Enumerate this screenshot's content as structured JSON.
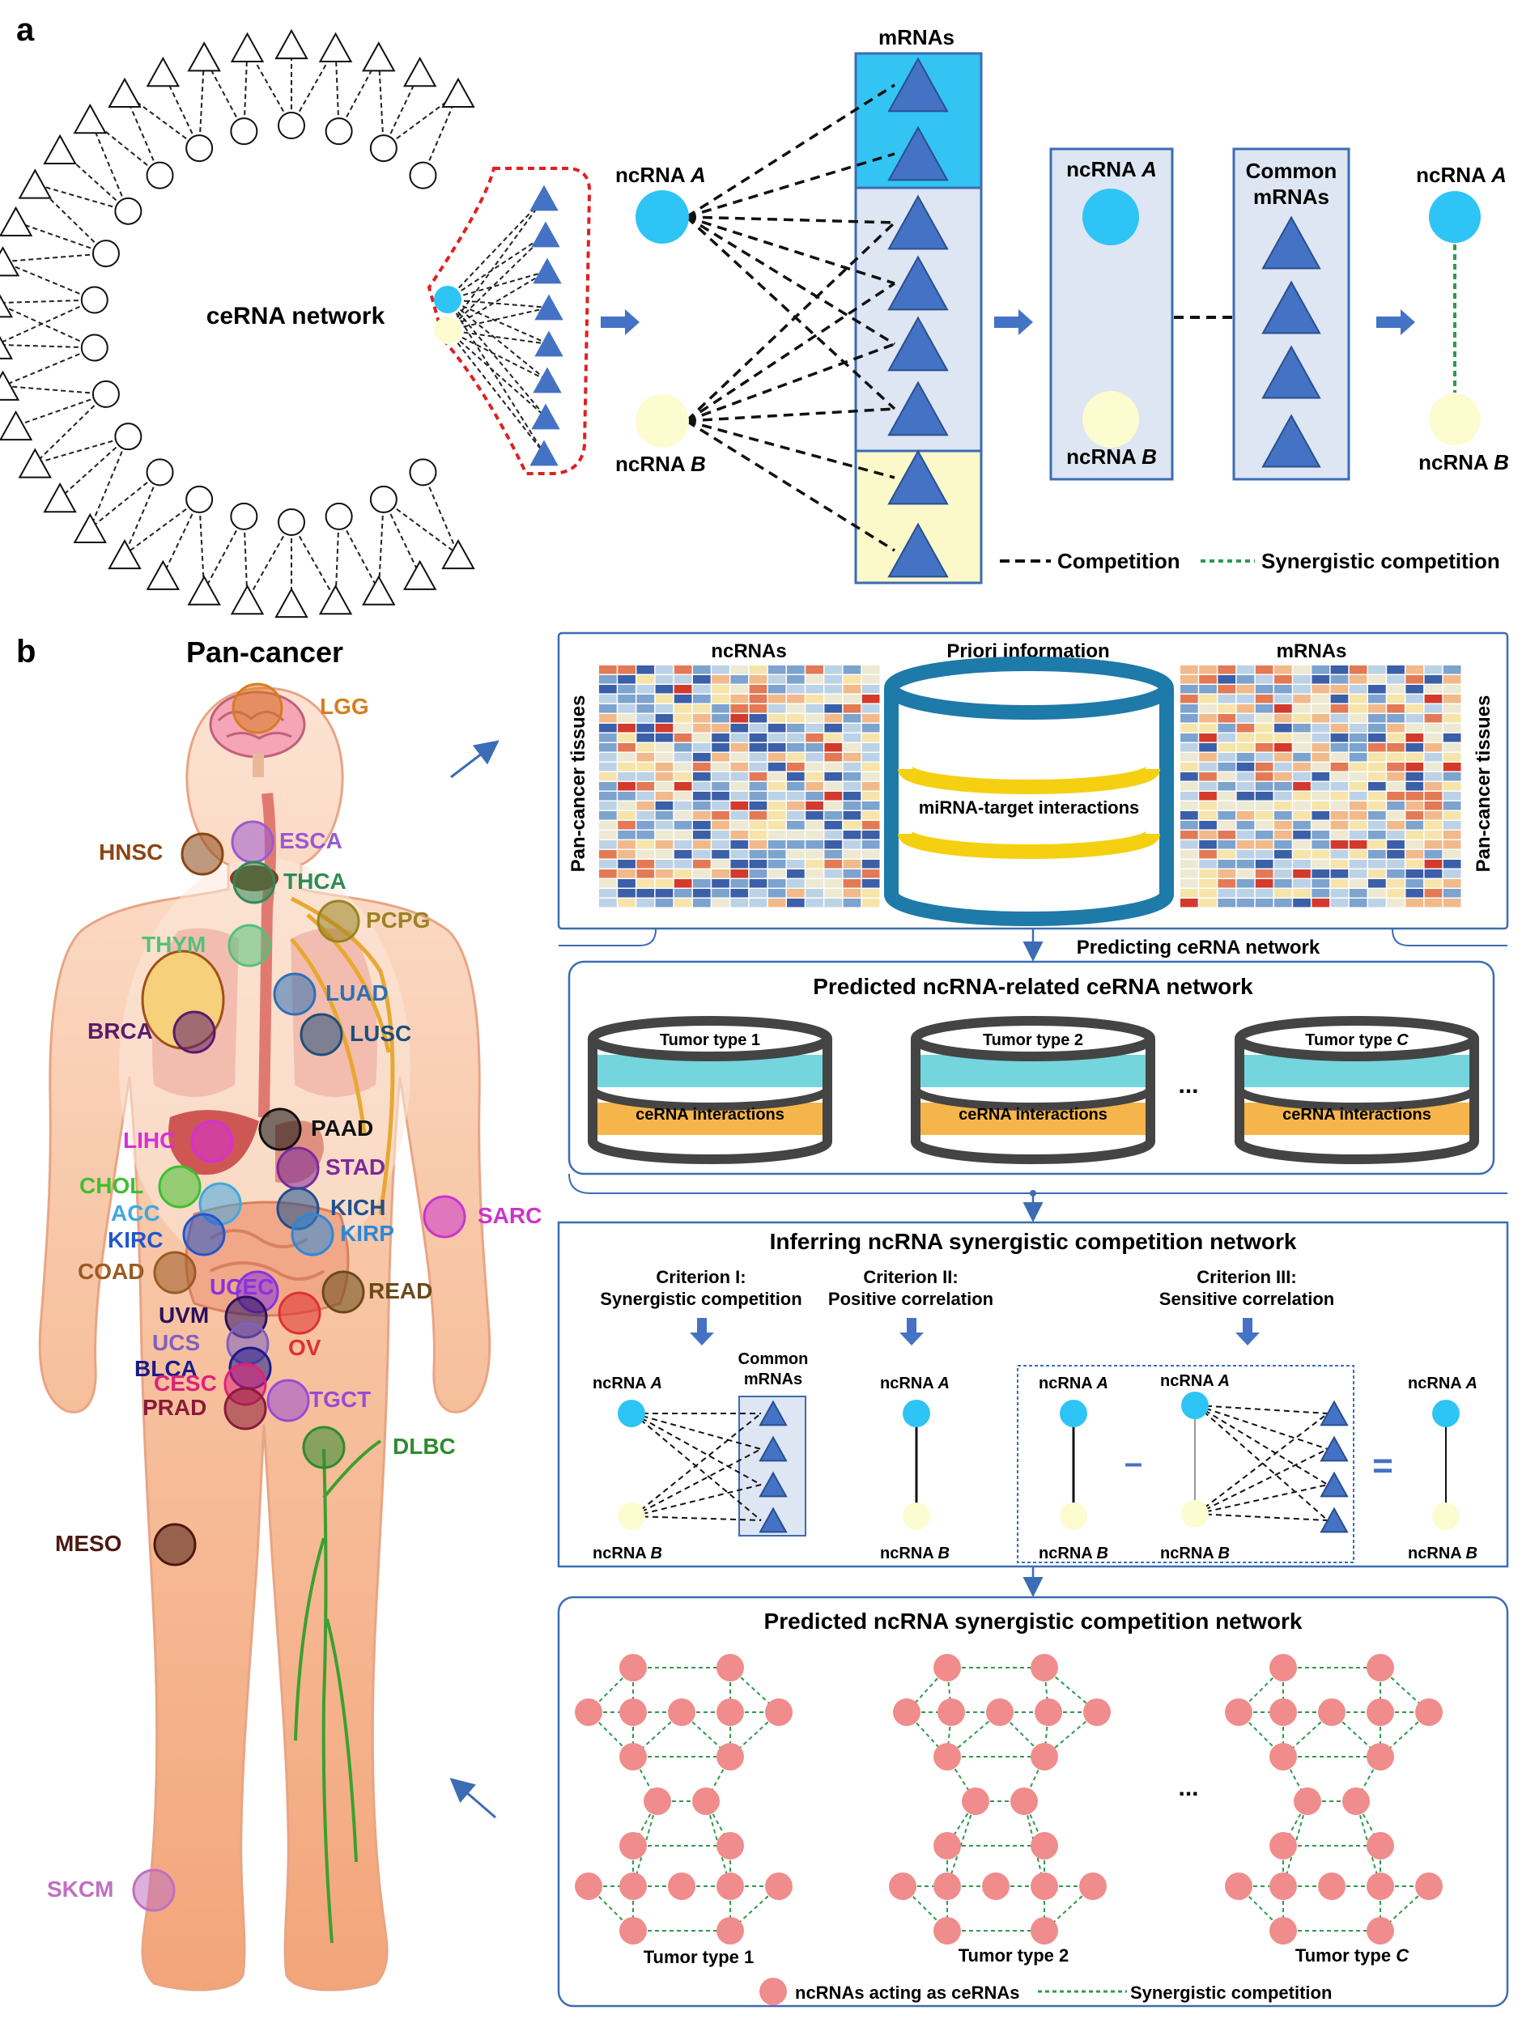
{
  "panel_a": {
    "label": "a",
    "network_label": "ceRNA network",
    "mrnas_title": "mRNAs",
    "ncrna": "ncRNA",
    "ncrna_a_letter": "A",
    "ncrna_b_letter": "B",
    "common_mrnas_1": "Common",
    "common_mrnas_2": "mRNAs",
    "legend_competition": "Competition",
    "legend_synergistic": "Synergistic competition"
  },
  "panel_b": {
    "label": "b",
    "pan_cancer_title": "Pan-cancer",
    "cancers": [
      {
        "name": "LGG",
        "color": "#d87c1f"
      },
      {
        "name": "HNSC",
        "color": "#8b4513"
      },
      {
        "name": "ESCA",
        "color": "#9b59d0"
      },
      {
        "name": "THCA",
        "color": "#2e8b57"
      },
      {
        "name": "PCPG",
        "color": "#9a8421"
      },
      {
        "name": "THYM",
        "color": "#52c27a"
      },
      {
        "name": "LUAD",
        "color": "#2f6fb5"
      },
      {
        "name": "BRCA",
        "color": "#5a1a6b"
      },
      {
        "name": "LUSC",
        "color": "#1f4e79"
      },
      {
        "name": "LIHC",
        "color": "#d630d6"
      },
      {
        "name": "PAAD",
        "color": "#111111"
      },
      {
        "name": "CHOL",
        "color": "#3fbf2f"
      },
      {
        "name": "STAD",
        "color": "#7b2a9a"
      },
      {
        "name": "ACC",
        "color": "#3fa8e0"
      },
      {
        "name": "KICH",
        "color": "#1f4f8f"
      },
      {
        "name": "SARC",
        "color": "#cc33cc"
      },
      {
        "name": "KIRC",
        "color": "#2255cc"
      },
      {
        "name": "KIRP",
        "color": "#2b88d8"
      },
      {
        "name": "COAD",
        "color": "#9b5a22"
      },
      {
        "name": "UCEC",
        "color": "#8833dd"
      },
      {
        "name": "READ",
        "color": "#6b4a1a"
      },
      {
        "name": "UVM",
        "color": "#2a1060"
      },
      {
        "name": "OV",
        "color": "#e03030"
      },
      {
        "name": "UCS",
        "color": "#8060c0"
      },
      {
        "name": "BLCA",
        "color": "#1a1a8a"
      },
      {
        "name": "CESC",
        "color": "#e0207a"
      },
      {
        "name": "TGCT",
        "color": "#9a4ad6"
      },
      {
        "name": "PRAD",
        "color": "#8a1a3a"
      },
      {
        "name": "DLBC",
        "color": "#2f8a2f"
      },
      {
        "name": "MESO",
        "color": "#4a1a10"
      },
      {
        "name": "SKCM",
        "color": "#c070c0"
      }
    ],
    "box1": {
      "ncrnas": "ncRNAs",
      "priori": "Priori information",
      "mrnas": "mRNAs",
      "mirna_target": "miRNA-target interactions",
      "tissues": "Pan-cancer tissues"
    },
    "predicting": "Predicting ceRNA network",
    "box2": {
      "title": "Predicted ncRNA-related ceRNA network",
      "tumor_type": "Tumor type",
      "tumor_1": "1",
      "tumor_2": "2",
      "tumor_c": "C",
      "cerna_interactions": "ceRNA interactions",
      "ellipsis": "..."
    },
    "box3": {
      "title": "Inferring ncRNA synergistic competition network",
      "crit1_a": "Criterion I:",
      "crit1_b": "Synergistic competition",
      "crit2_a": "Criterion II:",
      "crit2_b": "Positive correlation",
      "crit3_a": "Criterion III:",
      "crit3_b": "Sensitive correlation",
      "common_1": "Common",
      "common_2": "mRNAs"
    },
    "box4": {
      "title": "Predicted ncRNA synergistic competition network",
      "tumor_1": "Tumor type 1",
      "tumor_2": "Tumor type 2",
      "tumor_c_prefix": "Tumor type ",
      "tumor_c_letter": "C",
      "legend_nodes": "ncRNAs acting as ceRNAs",
      "legend_edges": "Synergistic competition",
      "ellipsis": "..."
    }
  },
  "colors": {
    "blue_node": "#2ec4f5",
    "yellow_node": "#fdfbd0",
    "tri_blue": "#4472c4",
    "box_border": "#3c6cb4",
    "light_blue_box": "#dde6f2",
    "cyan_box": "#33c4f3",
    "yellow_box": "#fbf8c9",
    "pink_node": "#f08c8c",
    "green_dash": "#2e9a4e",
    "red_dash": "#e02020"
  }
}
